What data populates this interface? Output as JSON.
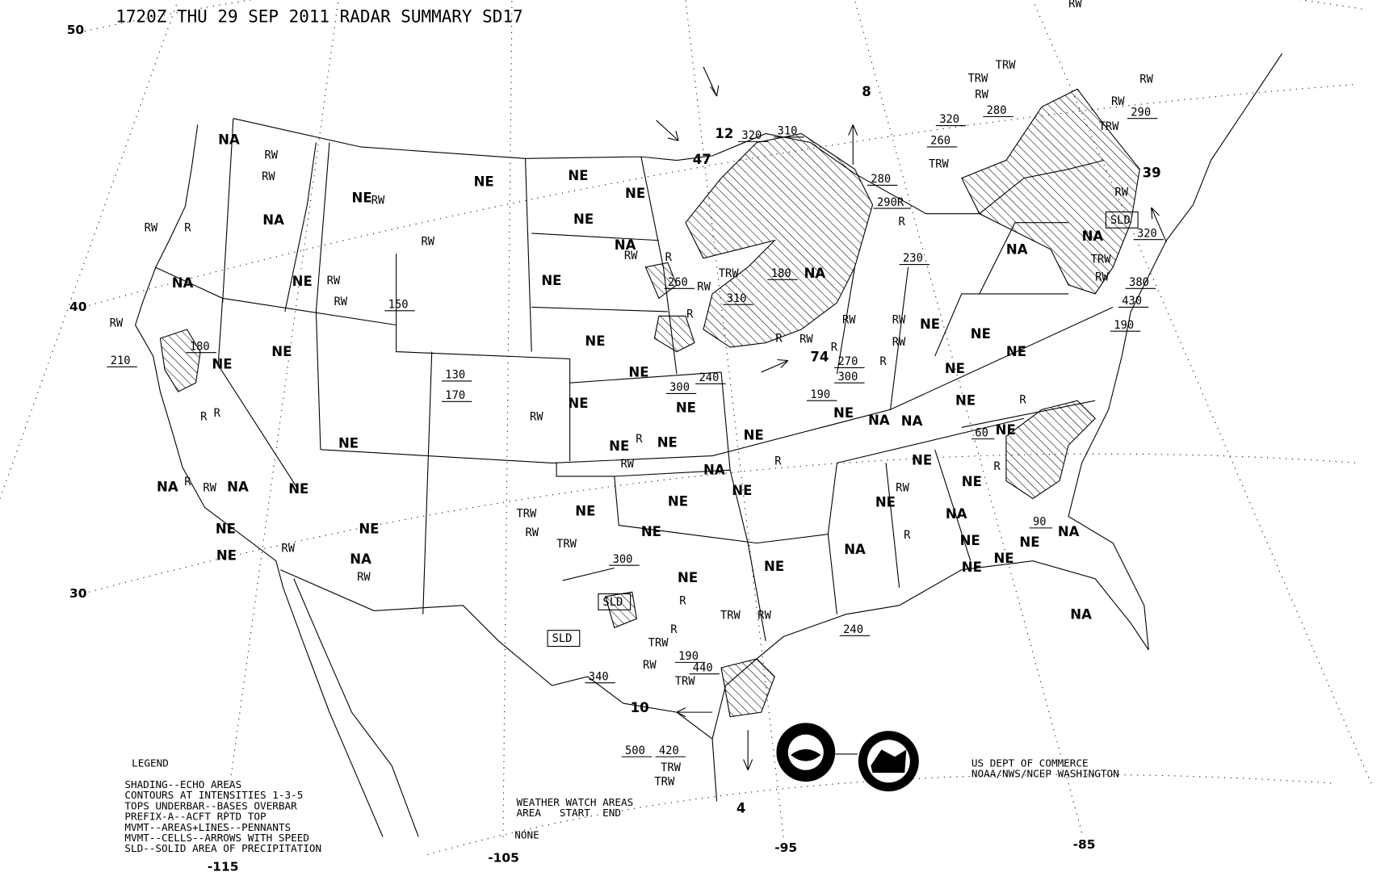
{
  "title": "1720Z THU 29 SEP 2011 RADAR SUMMARY SD17",
  "latitude_labels": [
    "50",
    "40",
    "30"
  ],
  "longitude_labels": [
    "-115",
    "-105",
    "-95",
    "-85"
  ],
  "legend": {
    "heading": "LEGEND",
    "lines": [
      "SHADING--ECHO AREAS",
      "CONTOURS AT INTENSITIES 1-3-5",
      "TOPS UNDERBAR--BASES OVERBAR",
      "PREFIX-A--ACFT RPTD TOP",
      "MVMT--AREAS+LINES--PENNANTS",
      "MVMT--CELLS--ARROWS WITH SPEED",
      "SLD--SOLID AREA OF PRECIPITATION"
    ]
  },
  "weather_watch": {
    "heading": "WEATHER WATCH AREAS",
    "columns": "AREA   START  END",
    "value": "NONE"
  },
  "agency": [
    "US DEPT OF COMMERCE",
    "NOAA/NWS/NCEP WASHINGTON"
  ],
  "logos": [
    "NOAA",
    "NATIONAL WEATHER SERVICE"
  ],
  "region_labels": [
    "NA",
    "NA",
    "NA",
    "NE",
    "NE",
    "NE",
    "NE",
    "NE",
    "NE",
    "NA",
    "NE",
    "NE",
    "NE",
    "NE",
    "NE",
    "NE",
    "NE",
    "NE",
    "NE",
    "NE",
    "NE",
    "NA",
    "NE",
    "NE",
    "NE",
    "NE",
    "NE",
    "NA",
    "NA",
    "NE",
    "NE",
    "NE",
    "NA",
    "NE",
    "NE",
    "NA",
    "NE",
    "NA",
    "NE",
    "NE",
    "NE",
    "NE",
    "NA",
    "NE",
    "NE",
    "NA",
    "NE",
    "NE",
    "NE",
    "NE",
    "NE",
    "NE",
    "NE",
    "NA",
    "NA",
    "NA",
    "NA",
    "NA"
  ],
  "precip_labels": [
    "RW",
    "RW",
    "RW",
    "R",
    "RW",
    "RW",
    "RW",
    "RW",
    "RW",
    "RW",
    "R",
    "RW",
    "TRW",
    "R",
    "R",
    "RW",
    "RW",
    "RW",
    "RW",
    "R",
    "R",
    "RW",
    "R",
    "RW",
    "R",
    "R",
    "R",
    "R",
    "RW",
    "RW",
    "RW",
    "TRW",
    "RW",
    "TRW",
    "R",
    "TRW",
    "RW",
    "R",
    "TRW",
    "RW",
    "TRW",
    "TRW",
    "TRW",
    "RW",
    "R",
    "R",
    "R",
    "RW",
    "TRW",
    "TRW",
    "RW",
    "TRW",
    "RW",
    "TRW",
    "RW",
    "TRW",
    "RW",
    "R",
    "RW"
  ],
  "echo_tops": [
    "320",
    "310",
    "280",
    "290R",
    "230",
    "180",
    "310",
    "260",
    "240",
    "300",
    "270",
    "300",
    "190",
    "150",
    "180",
    "210",
    "130",
    "170",
    "320",
    "260",
    "280",
    "290",
    "320",
    "380",
    "430",
    "190",
    "60",
    "90",
    "300",
    "240",
    "190",
    "440",
    "340",
    "500",
    "420"
  ],
  "cell_speeds": [
    "74",
    "12",
    "47",
    "8",
    "39",
    "10",
    "4"
  ],
  "solid_areas": [
    "SLD",
    "SLD",
    "SLD"
  ],
  "colors": {
    "background": "#ffffff",
    "ink": "#000000"
  }
}
